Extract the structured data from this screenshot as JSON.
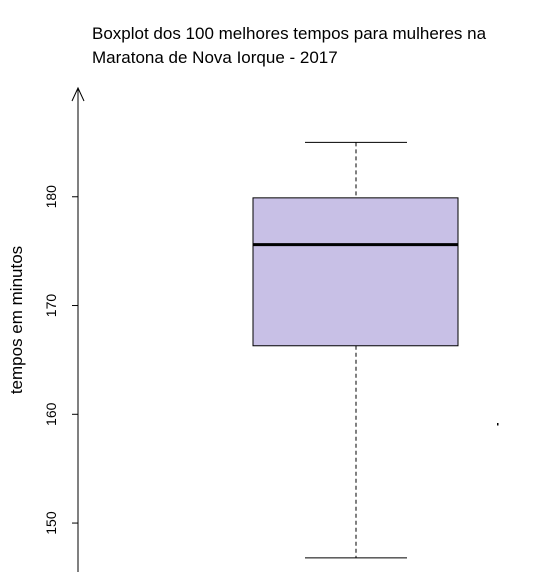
{
  "chart_data": {
    "type": "boxplot",
    "title_lines": [
      "Boxplot dos 100 melhores tempos para mulheres na",
      "Maratona de Nova Iorque - 2017"
    ],
    "xlabel": "",
    "ylabel": "tempos em minutos",
    "y_ticks": [
      150,
      160,
      170,
      180
    ],
    "ylim": [
      145.5,
      190.0
    ],
    "box": {
      "whisker_min": 146.8,
      "q1": 166.3,
      "median": 175.6,
      "q3": 179.9,
      "whisker_max": 185.0,
      "fill": "#c8c0e6"
    }
  }
}
